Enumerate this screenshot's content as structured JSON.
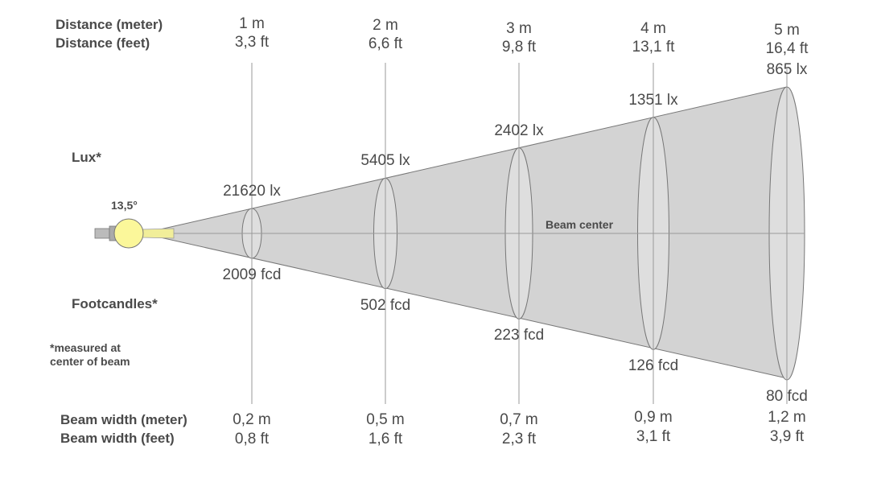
{
  "labels": {
    "distance_meter": "Distance (meter)",
    "distance_feet": "Distance (feet)",
    "lux": "Lux*",
    "footcandles": "Footcandles*",
    "note_line1": "*measured at",
    "note_line2": "center of beam",
    "beam_width_meter": "Beam width (meter)",
    "beam_width_feet": "Beam width (feet)",
    "beam_angle": "13,5°",
    "beam_center": "Beam center"
  },
  "distances": [
    {
      "meter": "1 m",
      "feet": "3,3 ft",
      "lux": "21620 lx",
      "fcd": "2009 fcd",
      "width_m": "0,2 m",
      "width_ft": "0,8 ft"
    },
    {
      "meter": "2 m",
      "feet": "6,6 ft",
      "lux": "5405 lx",
      "fcd": "502 fcd",
      "width_m": "0,5 m",
      "width_ft": "1,6 ft"
    },
    {
      "meter": "3 m",
      "feet": "9,8 ft",
      "lux": "2402 lx",
      "fcd": "223 fcd",
      "width_m": "0,7 m",
      "width_ft": "2,3 ft"
    },
    {
      "meter": "4 m",
      "feet": "13,1 ft",
      "lux": "1351 lx",
      "fcd": "126 fcd",
      "width_m": "0,9 m",
      "width_ft": "3,1 ft"
    },
    {
      "meter": "5 m",
      "feet": "16,4 ft",
      "lux": "865 lx",
      "fcd": "80 fcd",
      "width_m": "1,2 m",
      "width_ft": "3,9 ft"
    }
  ],
  "colors": {
    "cone": "#d3d3d3",
    "bulb": "#fbf79a",
    "line": "#999999",
    "text": "#4a4a4a"
  }
}
